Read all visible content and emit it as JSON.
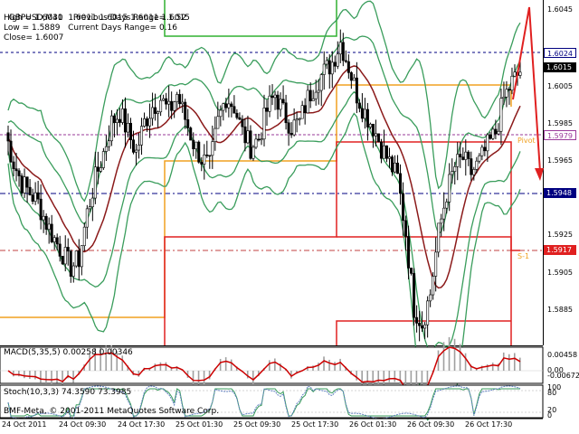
{
  "chart_header": {
    "symbol": "GBPUSD,M30",
    "ohlc": "1.6011 1.6015 1.6011 1.6015",
    "high": "High = 1.6041",
    "low": "Low = 1.5889",
    "close": "Close= 1.6007",
    "prev_range": "Previous Days Range= 1.52",
    "curr_range": "Current Days Range= 0.16"
  },
  "price_scale": {
    "ticks": [
      "1.6045",
      "1.6005",
      "1.5985",
      "1.5965",
      "1.5925",
      "1.5905",
      "1.5885"
    ],
    "flags": {
      "top": "1.6024",
      "current": "1.6015",
      "pivot": "1.5979",
      "support_blue": "1.5948",
      "s1": "1.5917"
    }
  },
  "levels": {
    "pivot_label": "Pivot",
    "s1_label": "S-1"
  },
  "macd": {
    "title": "MACD(5,35,5) 0.00258 0.00346",
    "ticks": [
      "0.00458",
      "0.00",
      "-0.00672"
    ]
  },
  "stoch": {
    "title": "Stoch(10,3,3) 74.3590 73.3985",
    "ticks": [
      "100",
      "80",
      "20",
      "0"
    ]
  },
  "copyright": "BMF-Meta, © 2001-2011 MetaQuotes Software Corp.",
  "time_axis": [
    "24 Oct 2011",
    "24 Oct 09:30",
    "24 Oct 17:30",
    "25 Oct 01:30",
    "25 Oct 09:30",
    "25 Oct 17:30",
    "26 Oct 01:30",
    "26 Oct 09:30",
    "26 Oct 17:30"
  ],
  "colors": {
    "candle": "#000000",
    "bollinger": "#3a9d5c",
    "ma": "#8b1a1a",
    "pivot_orange": "#f0a020",
    "support_red": "#e02020",
    "resist_green": "#30b030",
    "blue_line": "#000080",
    "macd_signal": "#cc0000",
    "macd_hist": "#a0a0a0",
    "stoch_main": "#3a9d5c",
    "stoch_signal": "#6080c0",
    "flag_bg": "#000080"
  },
  "chart_data": {
    "type": "candlestick",
    "symbol": "GBPUSD",
    "timeframe": "M30",
    "y_range": [
      1.588,
      1.605
    ],
    "x_categories": [
      "24 Oct 2011",
      "24 Oct 09:30",
      "24 Oct 17:30",
      "25 Oct 01:30",
      "25 Oct 09:30",
      "25 Oct 17:30",
      "26 Oct 01:30",
      "26 Oct 09:30",
      "26 Oct 17:30"
    ],
    "close_series": [
      1.5985,
      1.597,
      1.596,
      1.5955,
      1.595,
      1.594,
      1.5932,
      1.5925,
      1.5918,
      1.5922,
      1.5945,
      1.5962,
      1.5975,
      1.599,
      1.5995,
      1.5985,
      1.5975,
      1.599,
      1.5998,
      1.6002,
      1.5995,
      1.6004,
      1.5992,
      1.598,
      1.5972,
      1.5968,
      1.599,
      1.6003,
      1.5998,
      1.5985,
      1.5978,
      1.5982,
      1.5996,
      1.6004,
      1.5995,
      1.5988,
      1.599,
      1.6002,
      1.601,
      1.6015,
      1.602,
      1.603,
      1.6018,
      1.6004,
      1.5995,
      1.5988,
      1.5978,
      1.597,
      1.5962,
      1.5935,
      1.5898,
      1.589,
      1.5905,
      1.5935,
      1.5955,
      1.5968,
      1.5972,
      1.5965,
      1.597,
      1.5978,
      1.5985,
      1.6002,
      1.601,
      1.6015
    ]
  }
}
